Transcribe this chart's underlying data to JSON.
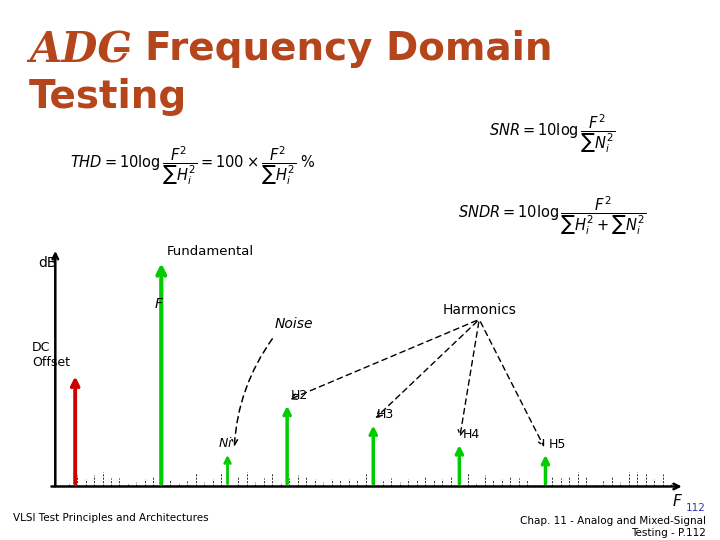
{
  "title_adc": "ADC",
  "title_color": "#b5451b",
  "bg_color": "#c8d4e8",
  "white": "#ffffff",
  "thd_box_color": "#c8e8f8",
  "snr_box_color": "#f5913a",
  "sndr_box_color": "#f8f8a0",
  "green_color": "#00cc00",
  "red_color": "#cc0000",
  "black": "#000000",
  "footer_left": "VLSI Test Principles and Architectures",
  "footer_right": "Chap. 11 - Analog and Mixed-Signal",
  "footer_num": "112",
  "footer_page": "Testing - P.112"
}
